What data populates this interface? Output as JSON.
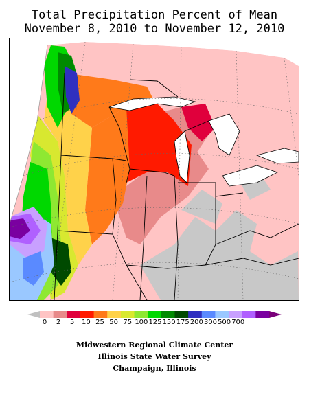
{
  "title_line1": "Total Precipitation Percent of Mean",
  "title_line2": "November 8, 2010 to November 12, 2010",
  "legend": {
    "labels": [
      "0",
      "2",
      "5",
      "10",
      "25",
      "50",
      "75",
      "100",
      "125",
      "150",
      "175",
      "200",
      "300",
      "500",
      "700"
    ],
    "colors": [
      "#ffc4c4",
      "#e88a8a",
      "#e0003c",
      "#ff1a00",
      "#ff7a1a",
      "#ffd24a",
      "#d8e830",
      "#8ee832",
      "#00d800",
      "#008a00",
      "#004a00",
      "#3030c0",
      "#5a8aff",
      "#9ac8ff",
      "#c8a0ff",
      "#b060ff",
      "#7a00a0"
    ],
    "low_arrow_color": "#c0c0c0",
    "high_arrow_color": "#7a007a"
  },
  "map_colors": {
    "no_precip": "#c8c8c8",
    "water": "#ffffff"
  },
  "credits": [
    "Midwestern Regional Climate Center",
    "Illinois State Water Survey",
    "Champaign, Illinois"
  ]
}
